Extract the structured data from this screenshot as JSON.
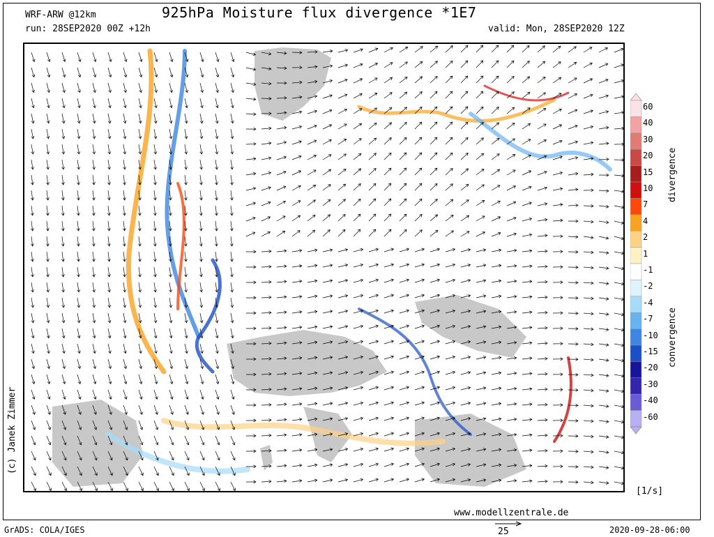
{
  "header": {
    "model": "WRF-ARW @12km",
    "run": "run: 28SEP2020 00Z +12h",
    "title": "925hPa Moisture flux divergence *1E7",
    "valid": "valid: Mon, 28SEP2020 12Z"
  },
  "footer": {
    "credit": "(c) Janek Zimmer",
    "website": "www.modellzentrale.de",
    "software": "GrADS: COLA/IGES",
    "timestamp": "2020-09-28-06:00",
    "vector_scale": "25"
  },
  "legend": {
    "units": "[1/s]",
    "divergence_label": "divergence",
    "convergence_label": "convergence",
    "entries": [
      {
        "label": "60",
        "color": "#fbe2e6"
      },
      {
        "label": "40",
        "color": "#f3a3a3"
      },
      {
        "label": "30",
        "color": "#e07c74"
      },
      {
        "label": "20",
        "color": "#c94a45"
      },
      {
        "label": "15",
        "color": "#a81d1d"
      },
      {
        "label": "10",
        "color": "#d01010"
      },
      {
        "label": "7",
        "color": "#fb4a0c"
      },
      {
        "label": "4",
        "color": "#fba21f"
      },
      {
        "label": "2",
        "color": "#fdd285"
      },
      {
        "label": "1",
        "color": "#fff1c6"
      },
      {
        "label": "-1",
        "color": "#ffffff"
      },
      {
        "label": "-2",
        "color": "#dff3fd"
      },
      {
        "label": "-4",
        "color": "#a6dcfa"
      },
      {
        "label": "-7",
        "color": "#69b2f2"
      },
      {
        "label": "-10",
        "color": "#3f86e2"
      },
      {
        "label": "-15",
        "color": "#1b4fc9"
      },
      {
        "label": "-20",
        "color": "#17159e"
      },
      {
        "label": "-30",
        "color": "#3326ad"
      },
      {
        "label": "-40",
        "color": "#6a5cd8"
      },
      {
        "label": "-60",
        "color": "#b8b0f2"
      }
    ]
  },
  "map": {
    "land_gray": "#c8c8c8",
    "background": "#ffffff"
  }
}
